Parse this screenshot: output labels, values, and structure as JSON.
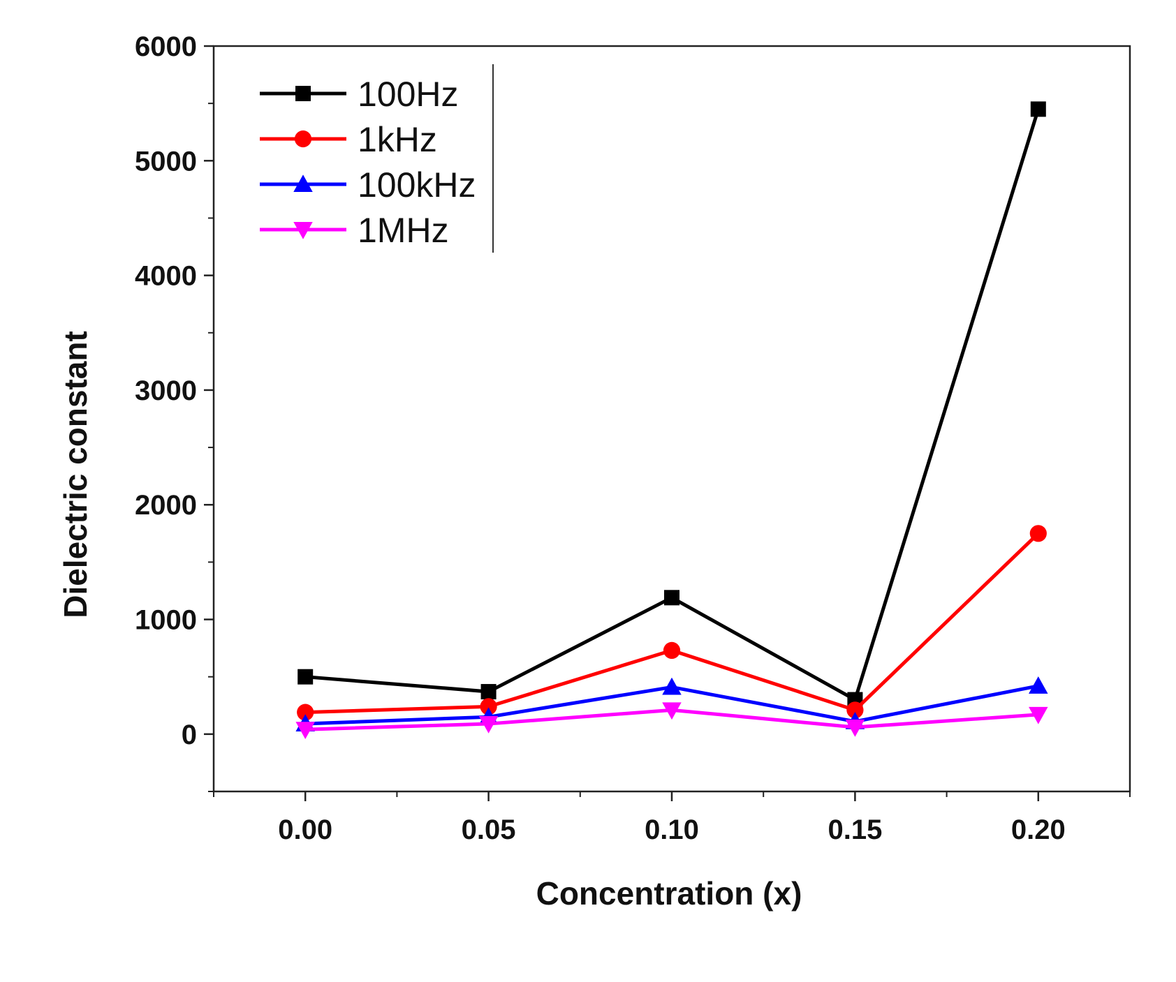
{
  "chart_data": {
    "type": "line",
    "title": "",
    "xlabel": "Concentration (x)",
    "ylabel": "Dielectric constant",
    "x": [
      0.0,
      0.05,
      0.1,
      0.15,
      0.2
    ],
    "x_tick_labels": [
      "0.00",
      "0.05",
      "0.10",
      "0.15",
      "0.20"
    ],
    "xlim": [
      -0.025,
      0.225
    ],
    "ylim": [
      -500,
      6000
    ],
    "y_ticks": [
      0,
      1000,
      2000,
      3000,
      4000,
      5000,
      6000
    ],
    "y_tick_labels": [
      "0",
      "1000",
      "2000",
      "3000",
      "4000",
      "5000",
      "6000"
    ],
    "grid": false,
    "legend_position": "top-left",
    "series": [
      {
        "name": "100Hz",
        "color": "#000000",
        "marker": "square",
        "values": [
          500,
          370,
          1190,
          300,
          5450
        ]
      },
      {
        "name": "1kHz",
        "color": "#ff0000",
        "marker": "circle",
        "values": [
          190,
          240,
          730,
          210,
          1750
        ]
      },
      {
        "name": "100kHz",
        "color": "#0000ff",
        "marker": "triangle-up",
        "values": [
          90,
          150,
          410,
          110,
          420
        ]
      },
      {
        "name": "1MHz",
        "color": "#ff00ff",
        "marker": "triangle-down",
        "values": [
          40,
          90,
          210,
          60,
          170
        ]
      }
    ]
  }
}
